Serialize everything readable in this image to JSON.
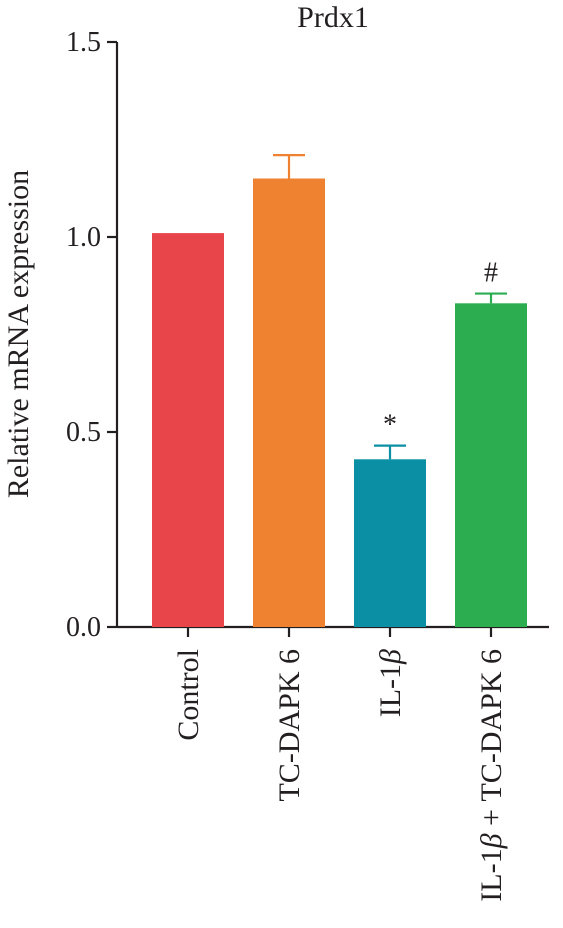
{
  "chart_data": {
    "type": "bar",
    "title": "Prdx1",
    "xlabel": "",
    "ylabel": "Relative mRNA expression",
    "ylim": [
      0,
      1.5
    ],
    "yticks": [
      "0.0",
      "0.5",
      "1.0",
      "1.5"
    ],
    "categories": [
      {
        "prefix": "Control",
        "beta": "",
        "suffix": ""
      },
      {
        "prefix": "TC-DAPK 6",
        "beta": "",
        "suffix": ""
      },
      {
        "prefix": "IL-1",
        "beta": "β",
        "suffix": ""
      },
      {
        "prefix": "IL-1",
        "beta": "β",
        "suffix": " + TC-DAPK 6"
      }
    ],
    "values": [
      1.01,
      1.15,
      0.43,
      0.83
    ],
    "errors": [
      0,
      0.06,
      0.035,
      0.025
    ],
    "annotations": [
      "",
      "",
      "*",
      "#"
    ],
    "colors": [
      "#e8454a",
      "#ef8230",
      "#0a8fa5",
      "#2bad50"
    ],
    "grid": false,
    "legend": "none"
  }
}
